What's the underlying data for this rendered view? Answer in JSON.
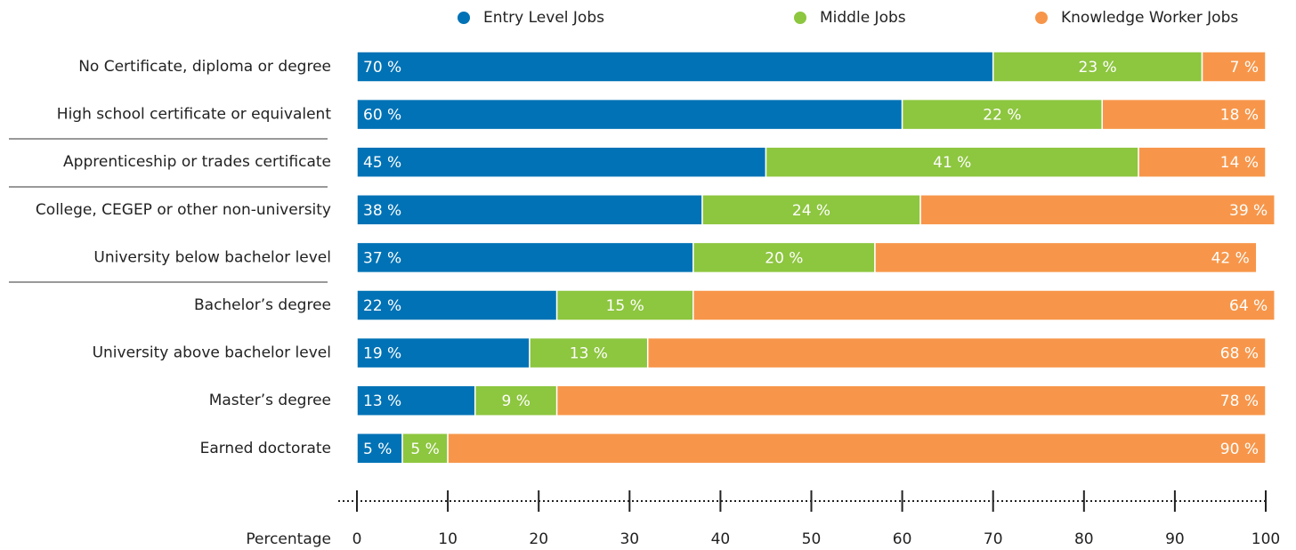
{
  "chart_data": {
    "type": "stacked-bar-horizontal",
    "categories": [
      "No Certificate, diploma or degree",
      "High school certificate or equivalent",
      "Apprenticeship or trades certificate",
      "College, CEGEP or other non-university",
      "University below bachelor level",
      "Bachelor’s degree",
      "University above bachelor level",
      "Master’s degree",
      "Earned doctorate"
    ],
    "series": [
      {
        "name": "Entry Level Jobs",
        "color": "#0072b5",
        "values": [
          70,
          60,
          45,
          38,
          37,
          22,
          19,
          13,
          5
        ],
        "value_labels": [
          "70 %",
          "60 %",
          "45 %",
          "38 %",
          "37 %",
          "22 %",
          "19 %",
          "13 %",
          "5 %"
        ]
      },
      {
        "name": "Middle Jobs",
        "color": "#8dc63f",
        "values": [
          23,
          22,
          41,
          24,
          20,
          15,
          13,
          9,
          5
        ],
        "value_labels": [
          "23 %",
          "22 %",
          "41 %",
          "24 %",
          "20 %",
          "15 %",
          "13 %",
          "9 %",
          "5 %"
        ]
      },
      {
        "name": "Knowledge Worker Jobs",
        "color": "#f7964a",
        "values": [
          7,
          18,
          14,
          39,
          42,
          64,
          68,
          78,
          90
        ],
        "value_labels": [
          "7 %",
          "18 %",
          "14 %",
          "39 %",
          "42 %",
          "64 %",
          "68 %",
          "78 %",
          "90 %"
        ]
      }
    ],
    "xlabel": "Percentage",
    "xlim": [
      0,
      100
    ],
    "xticks": [
      0,
      10,
      20,
      30,
      40,
      50,
      60,
      70,
      80,
      90,
      100
    ]
  }
}
